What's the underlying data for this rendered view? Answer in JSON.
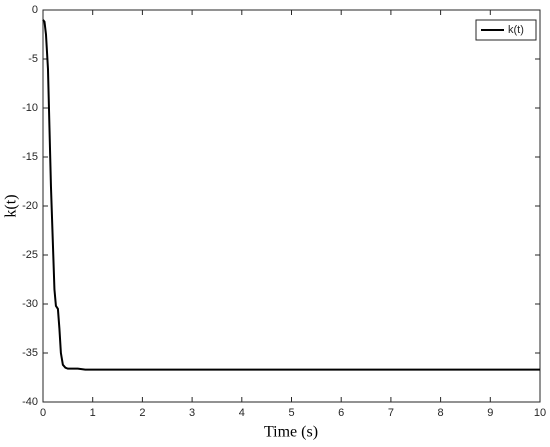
{
  "chart_data": {
    "type": "line",
    "xlabel": "Time (s)",
    "ylabel": "k(t)",
    "x": [
      0.0,
      0.03,
      0.06,
      0.1,
      0.13,
      0.16,
      0.2,
      0.23,
      0.26,
      0.3,
      0.33,
      0.36,
      0.4,
      0.45,
      0.5,
      0.6,
      0.7,
      0.85,
      1.0,
      2,
      4,
      6,
      8,
      10
    ],
    "series": [
      {
        "name": "k(t)",
        "color": "#000000",
        "values": [
          -1.0,
          -1.2,
          -2.5,
          -6,
          -12,
          -18,
          -24,
          -28.5,
          -30.2,
          -30.5,
          -32.5,
          -35,
          -36.2,
          -36.5,
          -36.6,
          -36.6,
          -36.6,
          -36.7,
          -36.7,
          -36.7,
          -36.7,
          -36.7,
          -36.7,
          -36.7
        ]
      }
    ],
    "xlim": [
      0,
      10
    ],
    "xticks": [
      0,
      1,
      2,
      3,
      4,
      5,
      6,
      7,
      8,
      9,
      10
    ],
    "ylim": [
      -40,
      0
    ],
    "yticks": [
      -40,
      -35,
      -30,
      -25,
      -20,
      -15,
      -10,
      -5,
      0
    ],
    "legend": "upper-right"
  }
}
